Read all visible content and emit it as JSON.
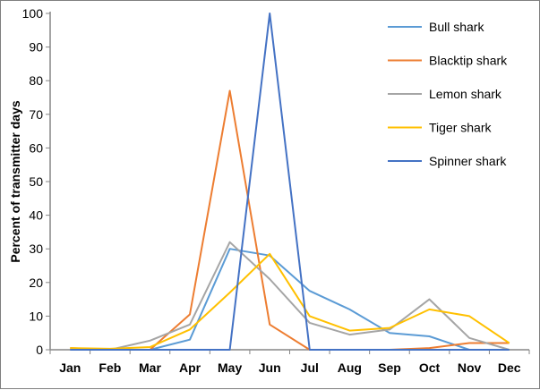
{
  "chart_data": {
    "type": "line",
    "title": "",
    "xlabel": "",
    "ylabel": "Percent of transmitter days",
    "ylim": [
      0,
      100
    ],
    "yticks": [
      0,
      10,
      20,
      30,
      40,
      50,
      60,
      70,
      80,
      90,
      100
    ],
    "categories": [
      "Jan",
      "Feb",
      "Mar",
      "Apr",
      "May",
      "Jun",
      "Jul",
      "Aug",
      "Sep",
      "Oct",
      "Nov",
      "Dec"
    ],
    "grid": false,
    "legend_position": "top-right",
    "series": [
      {
        "name": "Bull shark",
        "color": "#5B9BD5",
        "values": [
          0,
          0,
          0,
          3,
          30,
          28,
          17.5,
          12,
          5,
          4,
          0,
          0
        ]
      },
      {
        "name": "Blacktip shark",
        "color": "#ED7D31",
        "values": [
          0.5,
          0,
          0,
          10.5,
          77,
          7.5,
          0,
          0,
          0,
          0.5,
          2,
          2
        ]
      },
      {
        "name": "Lemon shark",
        "color": "#A5A5A5",
        "values": [
          0,
          0,
          2.7,
          7.5,
          32,
          21,
          8,
          4.5,
          6,
          15,
          3.5,
          0
        ]
      },
      {
        "name": "Tiger shark",
        "color": "#FFC000",
        "values": [
          0.5,
          0.3,
          0.8,
          6,
          17,
          28.5,
          10,
          5.7,
          6.5,
          12,
          10,
          2
        ]
      },
      {
        "name": "Spinner shark",
        "color": "#4472C4",
        "values": [
          0,
          0,
          0,
          0,
          0,
          100,
          0,
          0,
          0,
          0,
          0,
          0
        ]
      }
    ]
  }
}
